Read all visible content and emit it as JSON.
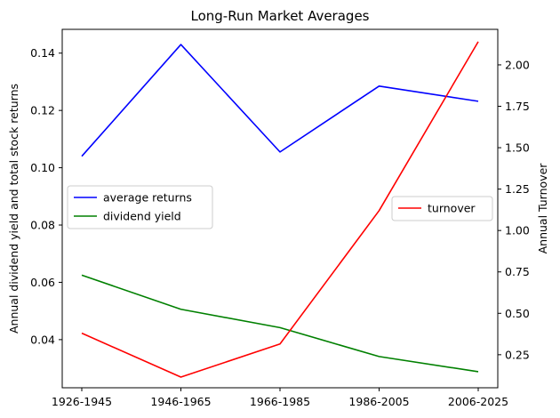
{
  "chart_data": {
    "type": "line",
    "title": "Long-Run Market Averages",
    "categories": [
      "1926-1945",
      "1946-1965",
      "1966-1985",
      "1986-2005",
      "2006-2025"
    ],
    "left_axis": {
      "label": "Annual dividend yield and total stock returns",
      "ylim": [
        0.0232,
        0.1483
      ],
      "ticks": [
        "0.04",
        "0.06",
        "0.08",
        "0.10",
        "0.12",
        "0.14"
      ]
    },
    "right_axis": {
      "label": "Annual Turnover",
      "ylim": [
        0.0505,
        2.2145
      ],
      "ticks": [
        "0.25",
        "0.50",
        "0.75",
        "1.00",
        "1.25",
        "1.50",
        "1.75",
        "2.00"
      ]
    },
    "series": [
      {
        "name": "average returns",
        "axis": "left",
        "color": "#0000ff",
        "values": [
          0.104,
          0.143,
          0.1055,
          0.1285,
          0.1232
        ]
      },
      {
        "name": "dividend yield",
        "axis": "left",
        "color": "#008000",
        "values": [
          0.0625,
          0.0506,
          0.0442,
          0.0341,
          0.0288
        ]
      },
      {
        "name": "turnover",
        "axis": "right",
        "color": "#ff0000",
        "values": [
          0.38,
          0.115,
          0.315,
          1.12,
          2.14
        ]
      }
    ],
    "legends": [
      {
        "placement": "center-left",
        "entries": [
          "average returns",
          "dividend yield"
        ]
      },
      {
        "placement": "center-right",
        "entries": [
          "turnover"
        ]
      }
    ],
    "grid": false
  }
}
